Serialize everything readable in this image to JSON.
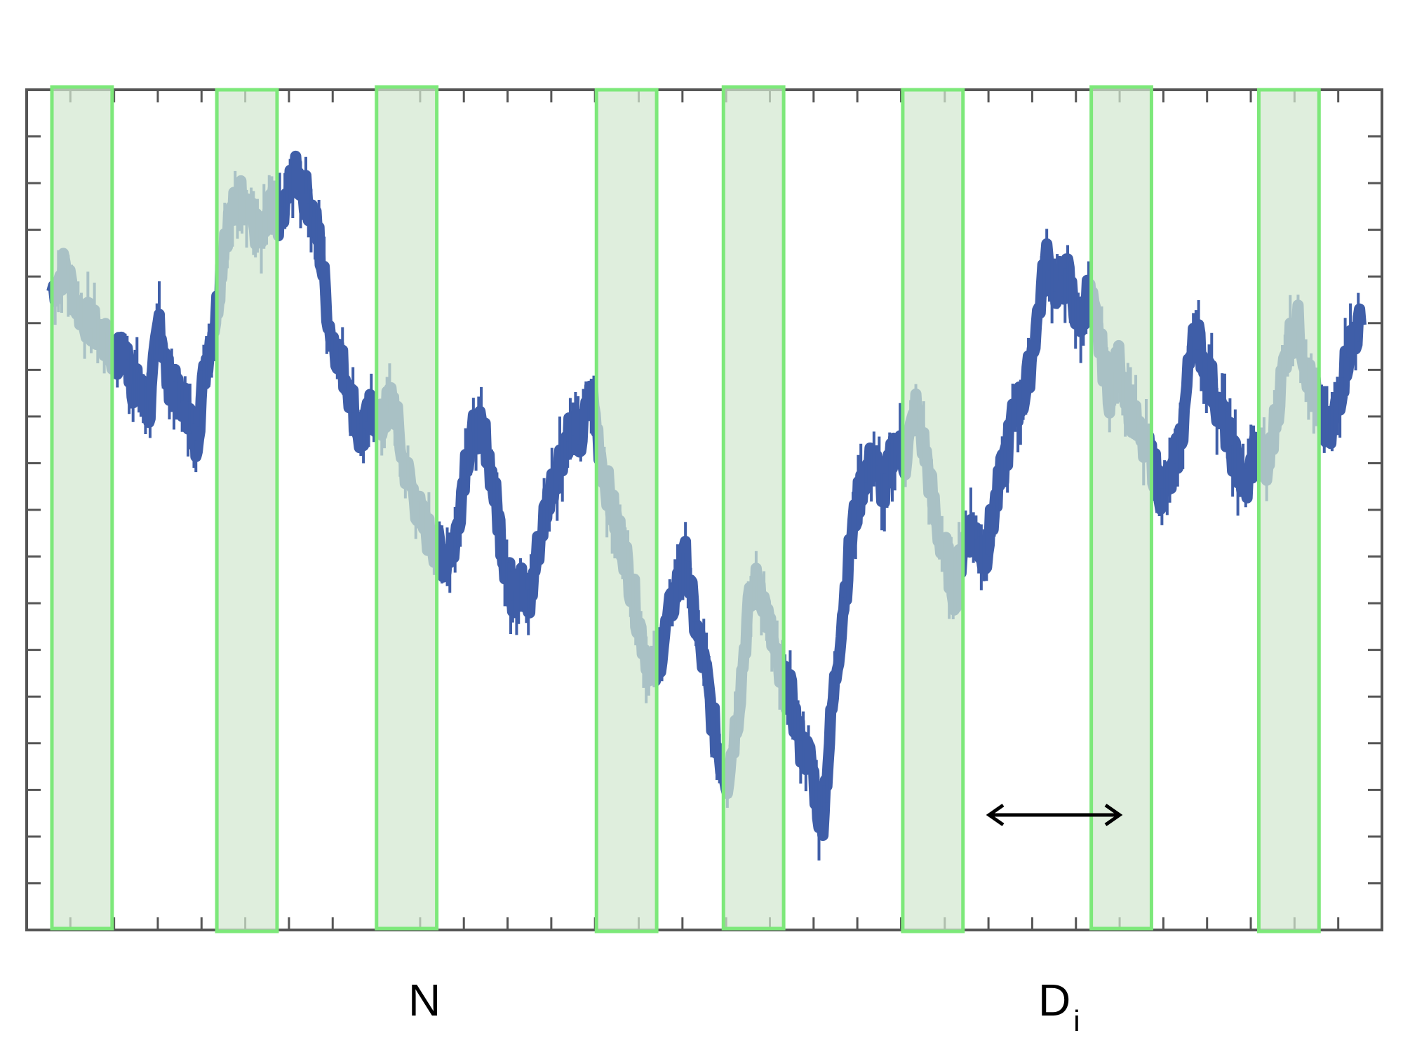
{
  "chart_data": {
    "type": "line",
    "title": "",
    "xlabel": "",
    "ylabel": "",
    "xlim": [
      0,
      1000
    ],
    "ylim": [
      0,
      100
    ],
    "grid": false,
    "tick_labels_shown": false,
    "series": [
      {
        "color": "#3f5ea8",
        "x": [
          0,
          10,
          20,
          30,
          40,
          48,
          56,
          62,
          68,
          75,
          82,
          88,
          95,
          104,
          110,
          118,
          126,
          132,
          140,
          147,
          154,
          160,
          168,
          176,
          184,
          190,
          198,
          204,
          212,
          220,
          228,
          236,
          244,
          252,
          260,
          268,
          276,
          284,
          292,
          300,
          308,
          316,
          324,
          332,
          340,
          346,
          352,
          358,
          364,
          372,
          380,
          388,
          396,
          404,
          412,
          420,
          428,
          436,
          444,
          452,
          460,
          468,
          476,
          484,
          492,
          500,
          508,
          516,
          524,
          532,
          540,
          548,
          556,
          564,
          572,
          580,
          588,
          596,
          604,
          612,
          620,
          628,
          636,
          644,
          652,
          660,
          668,
          676,
          684,
          690,
          696,
          704,
          712,
          720,
          728,
          736,
          744,
          752,
          760,
          768,
          776,
          784,
          792,
          800,
          808,
          816,
          824,
          832,
          840,
          848,
          856,
          864,
          872,
          880,
          888,
          896,
          904,
          912,
          920,
          928,
          936,
          944,
          952,
          960,
          968,
          976,
          984,
          992,
          1000
        ],
        "values": [
          76,
          79,
          74,
          72,
          70,
          68,
          69,
          65,
          64,
          62,
          73,
          66,
          64,
          62,
          58,
          68,
          74,
          83,
          86,
          88,
          84,
          82,
          86,
          84,
          90,
          89,
          86,
          82,
          72,
          68,
          64,
          58,
          62,
          60,
          64,
          56,
          52,
          48,
          46,
          44,
          46,
          56,
          60,
          58,
          50,
          44,
          40,
          42,
          38,
          46,
          52,
          56,
          60,
          58,
          64,
          56,
          50,
          46,
          40,
          34,
          30,
          35,
          40,
          44,
          36,
          30,
          22,
          18,
          26,
          38,
          42,
          36,
          30,
          28,
          22,
          20,
          12,
          26,
          38,
          48,
          54,
          56,
          52,
          58,
          56,
          62,
          56,
          48,
          44,
          40,
          46,
          48,
          44,
          50,
          56,
          62,
          64,
          72,
          80,
          76,
          78,
          72,
          76,
          70,
          64,
          68,
          62,
          58,
          56,
          52,
          54,
          60,
          72,
          68,
          64,
          60,
          56,
          52,
          58,
          54,
          62,
          70,
          72,
          66,
          62,
          58,
          64,
          70,
          72
        ]
      }
    ],
    "highlight_windows": [
      {
        "x_start": 0,
        "x_end": 46
      },
      {
        "x_start": 126,
        "x_end": 172
      },
      {
        "x_start": 248,
        "x_end": 294
      },
      {
        "x_start": 416,
        "x_end": 462
      },
      {
        "x_start": 513,
        "x_end": 559
      },
      {
        "x_start": 650,
        "x_end": 696
      },
      {
        "x_start": 794,
        "x_end": 840
      },
      {
        "x_start": 922,
        "x_end": 968
      }
    ],
    "window_color": "#d2e8d0",
    "window_border_color": "#7de87a",
    "annotations": [
      {
        "id": "n",
        "text": "N",
        "subscript": ""
      },
      {
        "id": "di",
        "text": "D",
        "subscript": "i"
      }
    ]
  }
}
